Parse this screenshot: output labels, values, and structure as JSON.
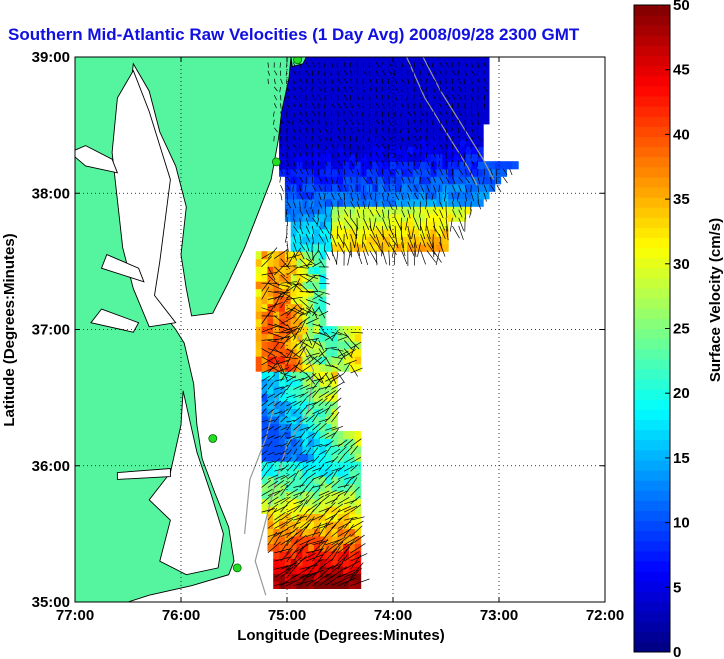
{
  "chart_data": {
    "type": "heatmap",
    "title": "Southern Mid-Atlantic Raw Velocities (1 Day Avg) 2008/09/28 2300 GMT",
    "xlabel": "Longitude (Degrees:Minutes)",
    "ylabel": "Latitude (Degrees:Minutes)",
    "xlim": [
      -77,
      -72
    ],
    "ylim": [
      35,
      39
    ],
    "x_ticks": [
      {
        "value": -77,
        "label": "77:00"
      },
      {
        "value": -76,
        "label": "76:00"
      },
      {
        "value": -75,
        "label": "75:00"
      },
      {
        "value": -74,
        "label": "74:00"
      },
      {
        "value": -73,
        "label": "73:00"
      },
      {
        "value": -72,
        "label": "72:00"
      }
    ],
    "y_ticks": [
      {
        "value": 35,
        "label": "35:00"
      },
      {
        "value": 36,
        "label": "36:00"
      },
      {
        "value": 37,
        "label": "37:00"
      },
      {
        "value": 38,
        "label": "38:00"
      },
      {
        "value": 39,
        "label": "39:00"
      }
    ],
    "grid": true,
    "land_color": "#55f59f",
    "colorbar": {
      "label": "Surface Velocity (cm/s)",
      "range": [
        0,
        50
      ],
      "ticks": [
        0,
        5,
        10,
        15,
        20,
        25,
        30,
        35,
        40,
        45,
        50
      ],
      "colormap": "jet",
      "placement": "right"
    },
    "stations": [
      {
        "lon": -74.9,
        "lat": 38.98
      },
      {
        "lon": -75.1,
        "lat": 38.23
      },
      {
        "lon": -75.7,
        "lat": 36.2
      },
      {
        "lon": -75.47,
        "lat": 35.25
      }
    ],
    "velocity_regions": [
      {
        "name": "north",
        "lat_range": [
          37.55,
          39.0
        ],
        "lon_range": [
          -75.15,
          -72.85
        ],
        "speed_range": [
          4,
          40
        ]
      },
      {
        "name": "mid",
        "lat_range": [
          36.65,
          37.55
        ],
        "lon_range": [
          -75.3,
          -74.4
        ],
        "speed_range": [
          18,
          45
        ]
      },
      {
        "name": "south",
        "lat_range": [
          35.1,
          36.65
        ],
        "lon_range": [
          -75.25,
          -74.35
        ],
        "speed_range": [
          10,
          50
        ]
      }
    ]
  }
}
